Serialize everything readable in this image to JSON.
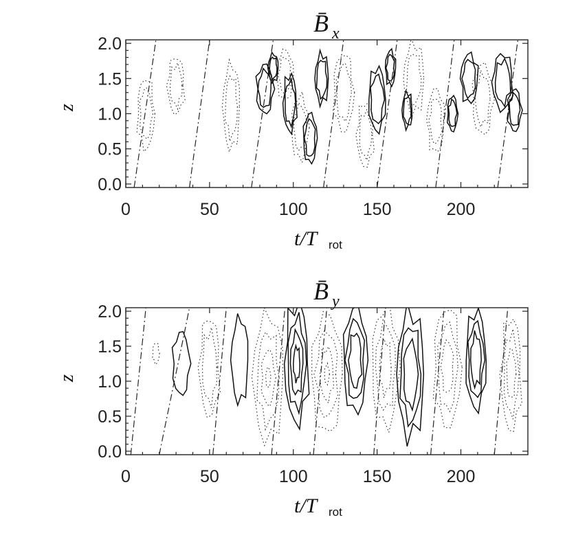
{
  "chart_data": [
    {
      "type": "contour",
      "title": "B̄",
      "title_subscript": "x",
      "xlabel": "t/T",
      "xlabel_subscript": "rot",
      "ylabel": "z",
      "xlim": [
        0,
        240
      ],
      "ylim": [
        -0.05,
        2.05
      ],
      "x_ticks": [
        0,
        50,
        100,
        150,
        200
      ],
      "y_ticks": [
        0.0,
        0.5,
        1.0,
        1.5,
        2.0
      ],
      "x_tick_labels": [
        "0",
        "50",
        "100",
        "150",
        "200"
      ],
      "y_tick_labels": [
        "0.0",
        "0.5",
        "1.0",
        "1.5",
        "2.0"
      ],
      "line_styles": {
        "positive": "solid",
        "negative": "dotted",
        "zero": "dash-dot"
      },
      "zero_lines": [
        {
          "x_bottom": 5,
          "x_top": 18
        },
        {
          "x_bottom": 38,
          "x_top": 50
        },
        {
          "x_bottom": 75,
          "x_top": 88
        },
        {
          "x_bottom": 118,
          "x_top": 130
        },
        {
          "x_bottom": 150,
          "x_top": 162
        },
        {
          "x_bottom": 185,
          "x_top": 196
        },
        {
          "x_bottom": 222,
          "x_top": 234
        }
      ],
      "positive_regions": [
        {
          "t": 83,
          "z": 1.35,
          "w": 5,
          "h": 0.35
        },
        {
          "t": 88,
          "z": 1.65,
          "w": 3,
          "h": 0.2
        },
        {
          "t": 98,
          "z": 1.15,
          "w": 4,
          "h": 0.4
        },
        {
          "t": 110,
          "z": 0.65,
          "w": 4,
          "h": 0.35
        },
        {
          "t": 117,
          "z": 1.5,
          "w": 4,
          "h": 0.35
        },
        {
          "t": 150,
          "z": 1.2,
          "w": 5,
          "h": 0.45
        },
        {
          "t": 158,
          "z": 1.65,
          "w": 3,
          "h": 0.25
        },
        {
          "t": 168,
          "z": 1.05,
          "w": 3,
          "h": 0.25
        },
        {
          "t": 195,
          "z": 1.0,
          "w": 3,
          "h": 0.25
        },
        {
          "t": 205,
          "z": 1.5,
          "w": 5,
          "h": 0.35
        },
        {
          "t": 225,
          "z": 1.45,
          "w": 6,
          "h": 0.4
        },
        {
          "t": 232,
          "z": 1.05,
          "w": 4,
          "h": 0.3
        }
      ],
      "negative_regions": [
        {
          "t": 12,
          "z": 1.0,
          "w": 5,
          "h": 0.5
        },
        {
          "t": 30,
          "z": 1.4,
          "w": 5,
          "h": 0.4
        },
        {
          "t": 63,
          "z": 1.1,
          "w": 5,
          "h": 0.6
        },
        {
          "t": 95,
          "z": 1.55,
          "w": 5,
          "h": 0.35
        },
        {
          "t": 104,
          "z": 0.8,
          "w": 5,
          "h": 0.45
        },
        {
          "t": 130,
          "z": 1.3,
          "w": 6,
          "h": 0.55
        },
        {
          "t": 143,
          "z": 0.7,
          "w": 5,
          "h": 0.45
        },
        {
          "t": 172,
          "z": 1.5,
          "w": 6,
          "h": 0.5
        },
        {
          "t": 185,
          "z": 0.9,
          "w": 5,
          "h": 0.45
        },
        {
          "t": 213,
          "z": 1.2,
          "w": 6,
          "h": 0.5
        }
      ]
    },
    {
      "type": "contour",
      "title": "B̄",
      "title_subscript": "y",
      "xlabel": "t/T",
      "xlabel_subscript": "rot",
      "ylabel": "z",
      "xlim": [
        0,
        240
      ],
      "ylim": [
        -0.05,
        2.05
      ],
      "x_ticks": [
        0,
        50,
        100,
        150,
        200
      ],
      "y_ticks": [
        0.0,
        0.5,
        1.0,
        1.5,
        2.0
      ],
      "x_tick_labels": [
        "0",
        "50",
        "100",
        "150",
        "200"
      ],
      "y_tick_labels": [
        "0.0",
        "0.5",
        "1.0",
        "1.5",
        "2.0"
      ],
      "line_styles": {
        "positive": "solid",
        "negative": "dotted",
        "zero": "dash-dot"
      },
      "zero_lines": [
        {
          "x_bottom": 3,
          "x_top": 12
        },
        {
          "x_bottom": 20,
          "x_top": 38
        },
        {
          "x_bottom": 52,
          "x_top": 60
        },
        {
          "x_bottom": 87,
          "x_top": 95
        },
        {
          "x_bottom": 112,
          "x_top": 120
        },
        {
          "x_bottom": 148,
          "x_top": 155
        },
        {
          "x_bottom": 182,
          "x_top": 190
        },
        {
          "x_bottom": 220,
          "x_top": 228
        }
      ],
      "positive_regions": [
        {
          "t": 33,
          "z": 1.25,
          "w": 5,
          "h": 0.45,
          "levels": 1
        },
        {
          "t": 68,
          "z": 1.3,
          "w": 5,
          "h": 0.6,
          "levels": 1
        },
        {
          "t": 102,
          "z": 1.25,
          "w": 7,
          "h": 0.85,
          "levels": 4
        },
        {
          "t": 137,
          "z": 1.3,
          "w": 7,
          "h": 0.75,
          "levels": 3
        },
        {
          "t": 170,
          "z": 1.1,
          "w": 8,
          "h": 0.9,
          "levels": 3
        },
        {
          "t": 209,
          "z": 1.3,
          "w": 6,
          "h": 0.7,
          "levels": 3
        }
      ],
      "negative_regions": [
        {
          "t": 18,
          "z": 1.4,
          "w": 2,
          "h": 0.15,
          "levels": 1
        },
        {
          "t": 50,
          "z": 1.2,
          "w": 6,
          "h": 0.7,
          "levels": 2
        },
        {
          "t": 85,
          "z": 1.05,
          "w": 9,
          "h": 0.9,
          "levels": 4
        },
        {
          "t": 120,
          "z": 1.1,
          "w": 9,
          "h": 0.85,
          "levels": 4
        },
        {
          "t": 155,
          "z": 1.2,
          "w": 8,
          "h": 0.85,
          "levels": 3
        },
        {
          "t": 192,
          "z": 1.2,
          "w": 8,
          "h": 0.85,
          "levels": 3
        },
        {
          "t": 230,
          "z": 1.1,
          "w": 6,
          "h": 0.8,
          "levels": 3
        }
      ]
    }
  ]
}
